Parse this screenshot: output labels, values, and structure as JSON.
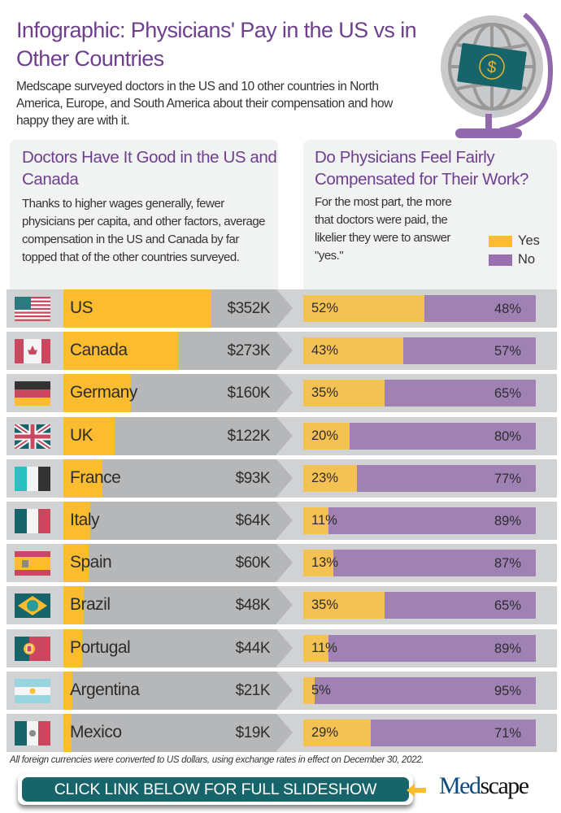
{
  "header": {
    "title": "Infographic: Physicians' Pay in the US vs in Other Countries",
    "intro": "Medscape surveyed doctors in the US and 10 other countries in North America, Europe, and South America about their compensation and how happy they are with it."
  },
  "left_panel": {
    "heading": "Doctors Have It Good in the US and Canada",
    "text": "Thanks to higher wages generally, fewer physicians per capita, and other factors, average compensation in the US and Canada by far topped that of the other countries surveyed."
  },
  "right_panel": {
    "heading": "Do Physicians Feel Fairly Compensated for Their Work?",
    "text": "For the most part, the more that doctors were paid, the likelier they were to answer \"yes.\"",
    "legend": [
      {
        "label": "Yes",
        "color": "#fbbc2f"
      },
      {
        "label": "No",
        "color": "#9b6fb0"
      }
    ]
  },
  "chart_data": [
    {
      "type": "bar",
      "title": "Doctors Have It Good in the US and Canada",
      "unit": "$K",
      "categories": [
        "US",
        "Canada",
        "Germany",
        "UK",
        "France",
        "Italy",
        "Spain",
        "Brazil",
        "Portugal",
        "Argentina",
        "Mexico"
      ],
      "values": [
        352,
        273,
        160,
        122,
        93,
        64,
        60,
        48,
        44,
        21,
        19
      ],
      "labels": [
        "$352K",
        "$273K",
        "$160K",
        "$122K",
        "$93K",
        "$64K",
        "$60K",
        "$48K",
        "$44K",
        "$21K",
        "$19K"
      ],
      "flags": [
        "flag-us-icon",
        "flag-canada-icon",
        "flag-germany-icon",
        "flag-uk-icon",
        "flag-france-icon",
        "flag-italy-icon",
        "flag-spain-icon",
        "flag-brazil-icon",
        "flag-portugal-icon",
        "flag-argentina-icon",
        "flag-mexico-icon"
      ]
    },
    {
      "type": "bar",
      "stacked": true,
      "title": "Do Physicians Feel Fairly Compensated for Their Work?",
      "categories": [
        "US",
        "Canada",
        "Germany",
        "UK",
        "France",
        "Italy",
        "Spain",
        "Brazil",
        "Portugal",
        "Argentina",
        "Mexico"
      ],
      "series": [
        {
          "name": "Yes",
          "values": [
            52,
            43,
            35,
            20,
            23,
            11,
            13,
            35,
            11,
            5,
            29
          ]
        },
        {
          "name": "No",
          "values": [
            48,
            57,
            65,
            80,
            77,
            89,
            87,
            65,
            89,
            95,
            71
          ]
        }
      ]
    }
  ],
  "footer": {
    "note": "All foreign currencies were converted to US dollars, using exchange rates in effect on December 30, 2022.",
    "cta": "CLICK LINK BELOW FOR FULL SLIDESHOW",
    "logo_med": "Med",
    "logo_scape": "scape"
  }
}
